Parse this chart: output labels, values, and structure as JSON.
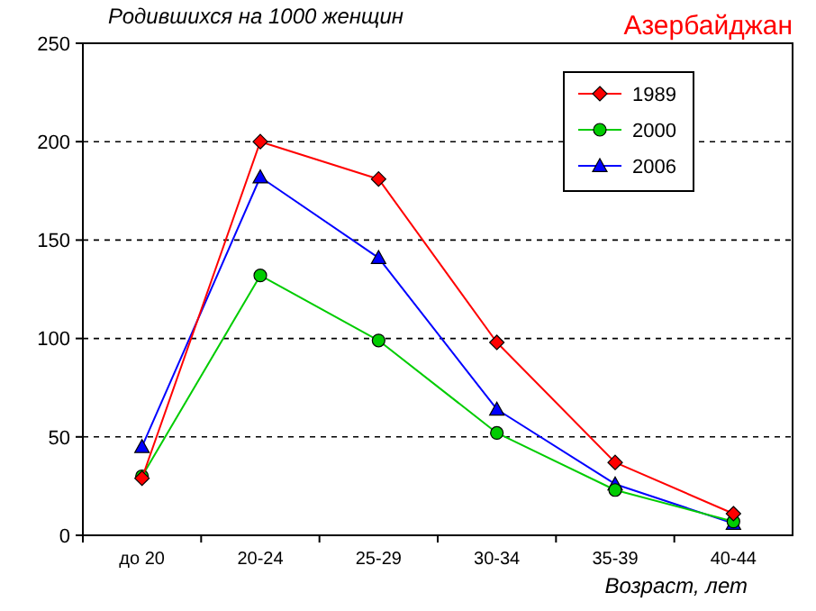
{
  "chart_data": {
    "type": "line",
    "title": "Азербайджан",
    "ylabel": "Родившихся на 1000 женщин",
    "xlabel": "Возраст, лет",
    "categories": [
      "до 20",
      "20-24",
      "25-29",
      "30-34",
      "35-39",
      "40-44"
    ],
    "series": [
      {
        "name": "1989",
        "color": "#ff0000",
        "marker": "diamond",
        "values": [
          29,
          200,
          181,
          98,
          37,
          11
        ]
      },
      {
        "name": "2000",
        "color": "#00cc00",
        "marker": "circle",
        "values": [
          30,
          132,
          99,
          52,
          23,
          7
        ]
      },
      {
        "name": "2006",
        "color": "#0000ff",
        "marker": "triangle",
        "values": [
          45,
          182,
          141,
          64,
          26,
          6
        ]
      }
    ],
    "ylim": [
      0,
      250
    ],
    "yticks": [
      0,
      50,
      100,
      150,
      200,
      250
    ],
    "grid": "y",
    "legend": "top right",
    "line_style": "solid"
  }
}
